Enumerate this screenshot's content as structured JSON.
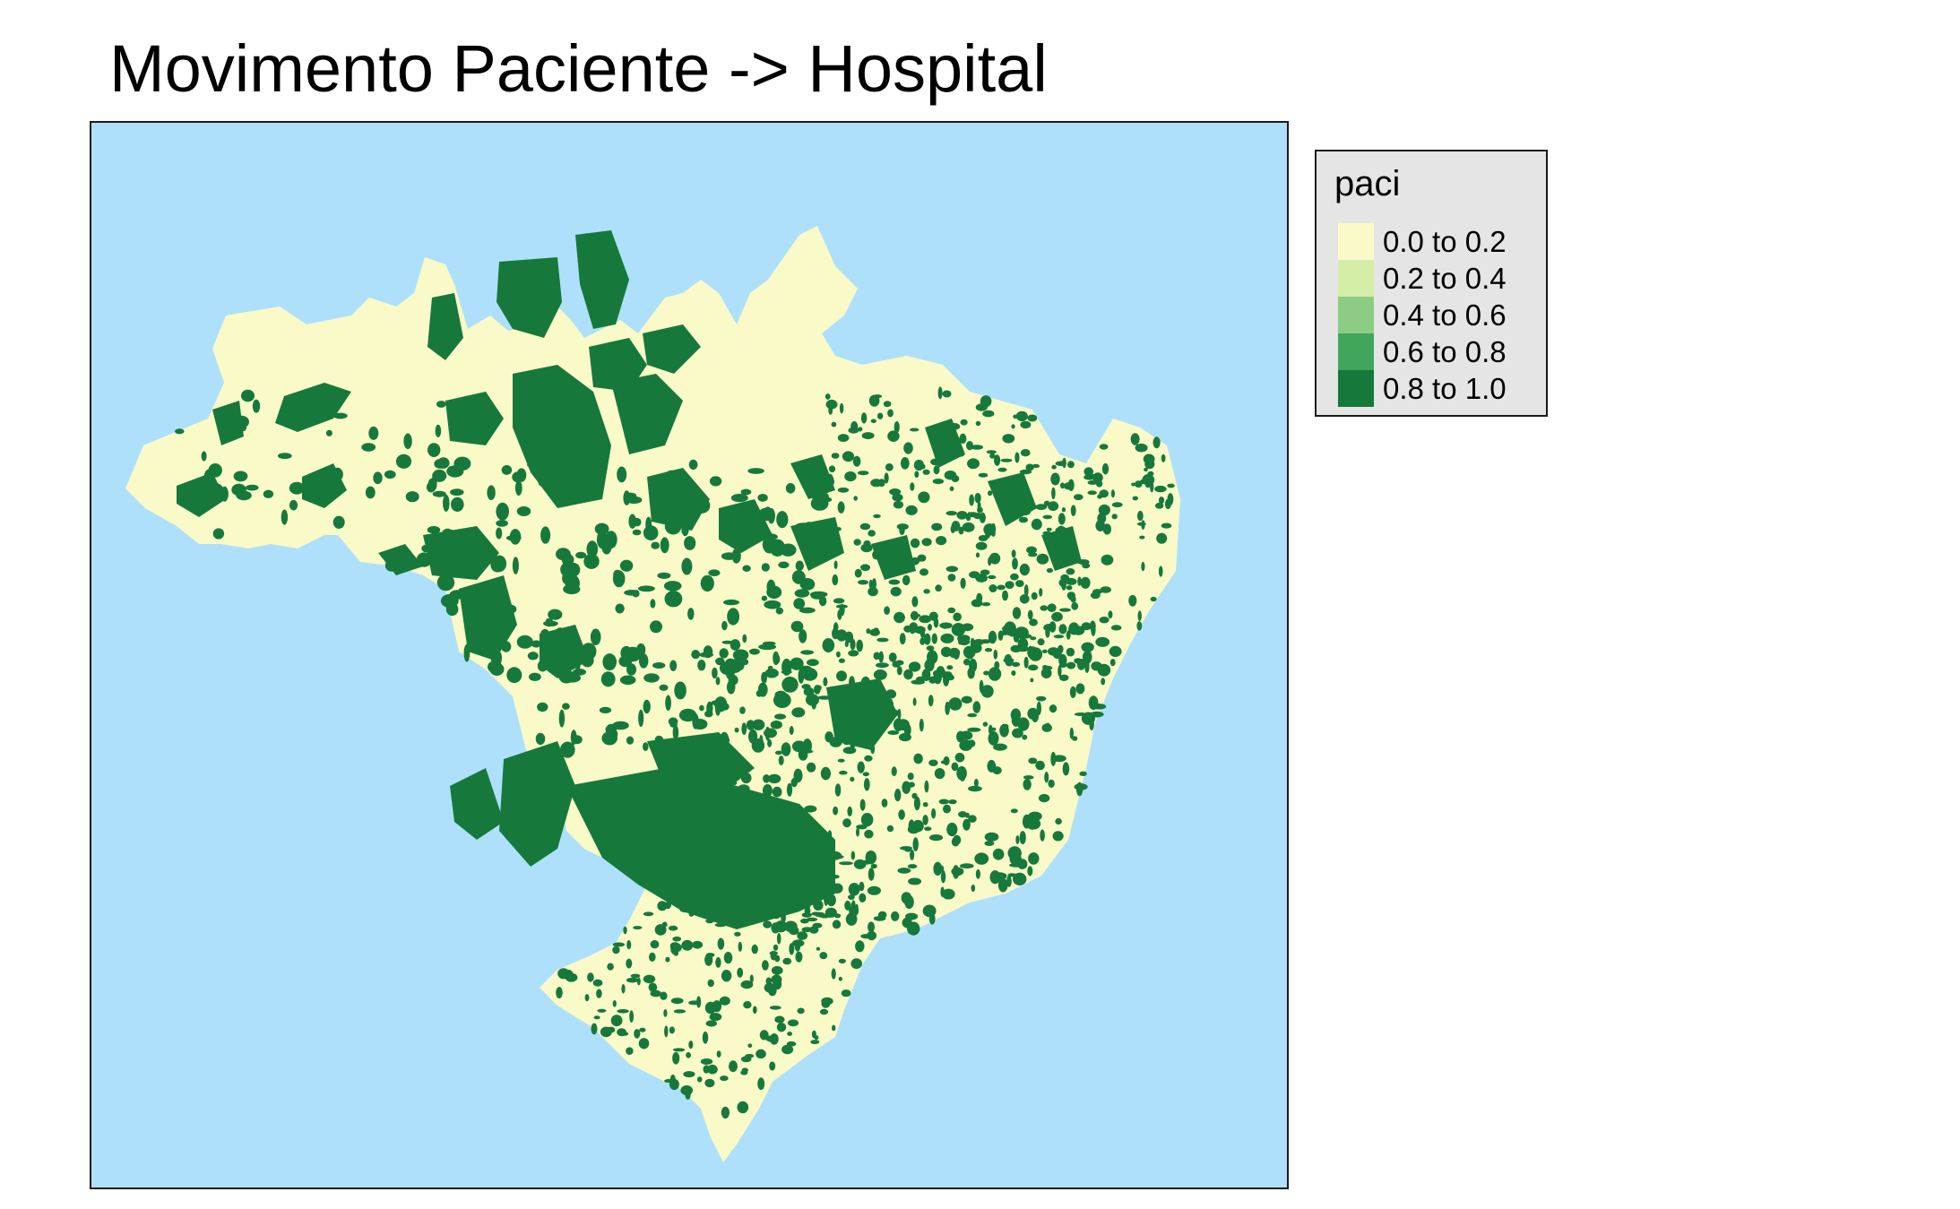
{
  "title": "Movimento Paciente -> Hospital",
  "map": {
    "background_color": "#aee0fb",
    "region": "Brasil (municípios)",
    "variable": "paci",
    "dominant_classes": [
      "0.0 to 0.2",
      "0.8 to 1.0"
    ]
  },
  "legend": {
    "title": "paci",
    "items": [
      {
        "label": "0.0 to 0.2",
        "color": "#fafac8"
      },
      {
        "label": "0.2 to 0.4",
        "color": "#d4eea8"
      },
      {
        "label": "0.4 to 0.6",
        "color": "#8dcc84"
      },
      {
        "label": "0.6 to 0.8",
        "color": "#41a65c"
      },
      {
        "label": "0.8 to 1.0",
        "color": "#16793b"
      }
    ]
  }
}
